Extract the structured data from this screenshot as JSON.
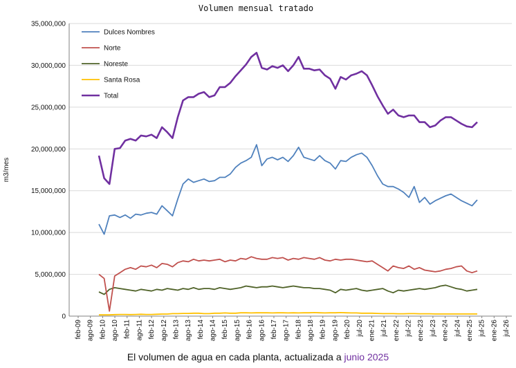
{
  "chart_data": {
    "type": "line",
    "title": "Volumen  mensual  tratado",
    "ylabel": "m3/mes",
    "ylim": [
      0,
      35000000
    ],
    "yticks": [
      0,
      5000000,
      10000000,
      15000000,
      20000000,
      25000000,
      30000000,
      35000000
    ],
    "ytick_labels": [
      "0",
      "5,000,000",
      "10,000,000",
      "15,000,000",
      "20,000,000",
      "25,000,000",
      "30,000,000",
      "35,000,000"
    ],
    "xtick_labels": [
      "feb-09",
      "ago-09",
      "feb-10",
      "ago-10",
      "feb-11",
      "ago-11",
      "feb-12",
      "ago-12",
      "feb-13",
      "ago-13",
      "feb-14",
      "ago-14",
      "feb-15",
      "ago-15",
      "feb-16",
      "ago-16",
      "feb-17",
      "ago-17",
      "feb-18",
      "ago-18",
      "feb-19",
      "ago-19",
      "feb-20",
      "jul-20",
      "ene-21",
      "jul-21",
      "ene-22",
      "jul-22",
      "ene-23",
      "jul-23",
      "ene-24",
      "jul-24",
      "ene-25",
      "jul-25",
      "ene-26",
      "jul-26"
    ],
    "legend_position": "top-left",
    "grid": "horizontal",
    "series": [
      {
        "name": "Dulces Nombres",
        "color": "#4f81bd",
        "values": [
          11000000,
          9800000,
          12000000,
          12100000,
          11800000,
          12100000,
          11700000,
          12200000,
          12100000,
          12300000,
          12400000,
          12200000,
          13200000,
          12600000,
          12000000,
          14000000,
          15800000,
          16400000,
          16000000,
          16200000,
          16400000,
          16100000,
          16200000,
          16600000,
          16600000,
          17000000,
          17800000,
          18300000,
          18600000,
          19000000,
          20500000,
          18000000,
          18800000,
          19000000,
          18700000,
          19000000,
          18500000,
          19200000,
          20200000,
          19000000,
          18800000,
          18600000,
          19200000,
          18600000,
          18300000,
          17600000,
          18600000,
          18500000,
          19000000,
          19300000,
          19500000,
          19000000,
          18000000,
          16800000,
          15800000,
          15500000,
          15500000,
          15200000,
          14800000,
          14200000,
          15500000,
          13600000,
          14200000,
          13400000,
          13800000,
          14100000,
          14400000,
          14600000,
          14200000,
          13800000,
          13500000,
          13200000,
          13900000
        ]
      },
      {
        "name": "Norte",
        "color": "#c0504d",
        "values": [
          5000000,
          4500000,
          600000,
          4800000,
          5200000,
          5600000,
          5800000,
          5600000,
          6000000,
          5900000,
          6100000,
          5800000,
          6300000,
          6200000,
          5900000,
          6400000,
          6600000,
          6500000,
          6800000,
          6600000,
          6700000,
          6600000,
          6700000,
          6800000,
          6500000,
          6700000,
          6600000,
          6900000,
          6800000,
          7100000,
          6900000,
          6800000,
          6800000,
          7000000,
          6900000,
          7000000,
          6700000,
          6900000,
          6800000,
          7000000,
          6900000,
          6800000,
          7000000,
          6700000,
          6600000,
          6800000,
          6700000,
          6800000,
          6800000,
          6700000,
          6600000,
          6500000,
          6600000,
          6200000,
          5800000,
          5400000,
          6000000,
          5800000,
          5700000,
          6000000,
          5600000,
          5800000,
          5500000,
          5400000,
          5300000,
          5400000,
          5600000,
          5700000,
          5900000,
          6000000,
          5400000,
          5200000,
          5400000
        ]
      },
      {
        "name": "Noreste",
        "color": "#4f6228",
        "values": [
          2900000,
          2600000,
          3200000,
          3400000,
          3300000,
          3200000,
          3100000,
          3000000,
          3200000,
          3100000,
          3000000,
          3200000,
          3100000,
          3300000,
          3200000,
          3100000,
          3300000,
          3200000,
          3400000,
          3200000,
          3300000,
          3300000,
          3200000,
          3400000,
          3300000,
          3200000,
          3300000,
          3400000,
          3600000,
          3500000,
          3400000,
          3500000,
          3500000,
          3600000,
          3500000,
          3400000,
          3500000,
          3600000,
          3500000,
          3400000,
          3400000,
          3300000,
          3300000,
          3200000,
          3100000,
          2800000,
          3200000,
          3100000,
          3200000,
          3300000,
          3100000,
          3000000,
          3100000,
          3200000,
          3300000,
          3000000,
          2800000,
          3100000,
          3000000,
          3100000,
          3200000,
          3300000,
          3200000,
          3300000,
          3400000,
          3600000,
          3700000,
          3500000,
          3300000,
          3200000,
          3000000,
          3100000,
          3200000
        ]
      },
      {
        "name": "Santa Rosa",
        "color": "#ffc000",
        "values": [
          150000,
          150000,
          150000,
          180000,
          200000,
          200000,
          180000,
          200000,
          220000,
          200000,
          200000,
          220000,
          250000,
          250000,
          300000,
          300000,
          320000,
          320000,
          350000,
          350000,
          300000,
          300000,
          350000,
          350000,
          380000,
          350000,
          350000,
          400000,
          400000,
          380000,
          400000,
          400000,
          400000,
          380000,
          400000,
          400000,
          380000,
          400000,
          380000,
          400000,
          400000,
          420000,
          400000,
          380000,
          400000,
          400000,
          420000,
          400000,
          380000,
          380000,
          350000,
          350000,
          350000,
          320000,
          300000,
          300000,
          300000,
          280000,
          280000,
          300000,
          300000,
          280000,
          280000,
          280000,
          260000,
          260000,
          260000,
          260000,
          260000,
          260000,
          260000,
          260000,
          260000
        ]
      },
      {
        "name": "Total",
        "color": "#7030a0",
        "values": [
          19200000,
          16500000,
          15800000,
          20000000,
          20100000,
          21000000,
          21200000,
          21000000,
          21600000,
          21500000,
          21700000,
          21300000,
          22600000,
          22000000,
          21300000,
          23800000,
          25800000,
          26200000,
          26200000,
          26600000,
          26800000,
          26200000,
          26400000,
          27400000,
          27400000,
          27900000,
          28700000,
          29400000,
          30100000,
          31000000,
          31500000,
          29700000,
          29500000,
          29900000,
          29700000,
          30000000,
          29300000,
          30000000,
          31000000,
          29600000,
          29600000,
          29400000,
          29500000,
          28800000,
          28400000,
          27200000,
          28600000,
          28300000,
          28800000,
          29000000,
          29300000,
          28800000,
          27600000,
          26300000,
          25200000,
          24200000,
          24700000,
          24000000,
          23800000,
          24000000,
          24000000,
          23200000,
          23200000,
          22600000,
          22800000,
          23400000,
          23800000,
          23800000,
          23400000,
          23000000,
          22700000,
          22600000,
          23200000
        ]
      }
    ]
  },
  "caption": {
    "text": "El volumen de agua en cada planta, actualizada a ",
    "highlight": "junio 2025"
  }
}
